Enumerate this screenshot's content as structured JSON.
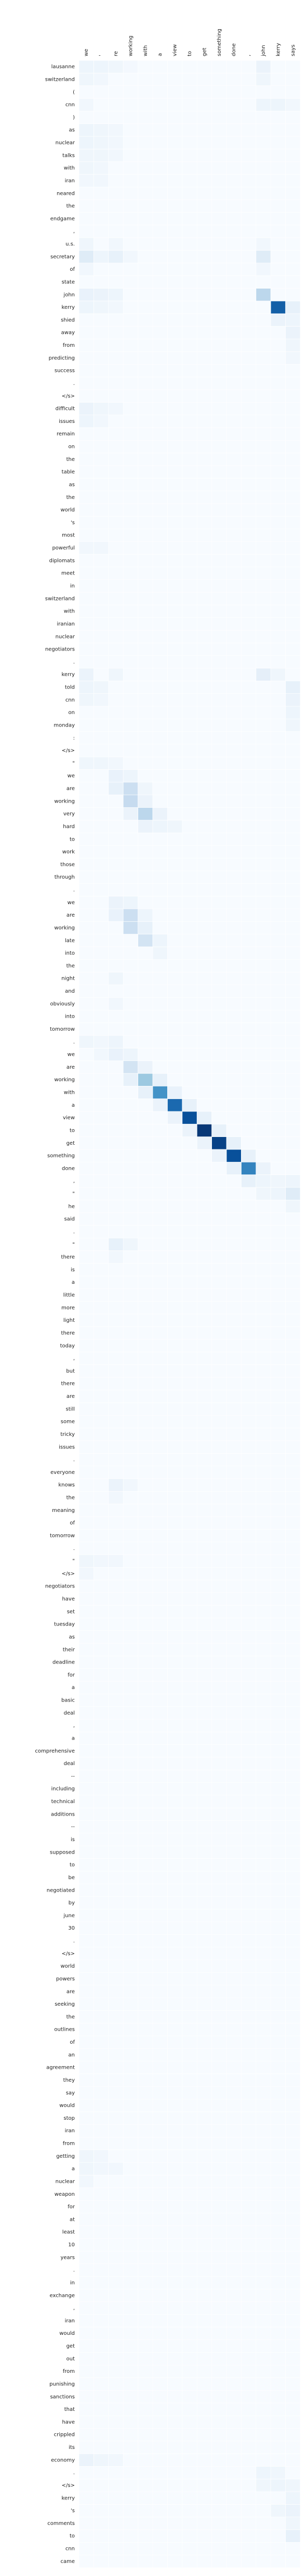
{
  "chart_data": {
    "type": "heatmap",
    "title": "",
    "xlabel": "",
    "ylabel": "",
    "grid": true,
    "colormap": [
      "#f7fbff",
      "#deebf7",
      "#c6dbef",
      "#9ecae1",
      "#6baed6",
      "#4292c6",
      "#2171b5",
      "#08519c",
      "#08306b"
    ],
    "x_labels": [
      "we",
      "'",
      "re",
      "working",
      "with",
      "a",
      "view",
      "to",
      "get",
      "something",
      "done",
      ",",
      "john",
      "kerry",
      "says"
    ],
    "y_labels": [
      "lausanne",
      "switzerland",
      "(",
      "cnn",
      ")",
      "as",
      "nuclear",
      "talks",
      "with",
      "iran",
      "neared",
      "the",
      "endgame",
      ",",
      "u.s.",
      "secretary",
      "of",
      "state",
      "john",
      "kerry",
      "shied",
      "away",
      "from",
      "predicting",
      "success",
      ".",
      "</s>",
      "difficult",
      "issues",
      "remain",
      "on",
      "the",
      "table",
      "as",
      "the",
      "world",
      "'s",
      "most",
      "powerful",
      "diplomats",
      "meet",
      "in",
      "switzerland",
      "with",
      "iranian",
      "nuclear",
      "negotiators",
      ".",
      "kerry",
      "told",
      "cnn",
      "on",
      "monday",
      ":",
      "</s>",
      "\"",
      "we",
      "are",
      "working",
      "very",
      "hard",
      "to",
      "work",
      "those",
      "through",
      ".",
      "we",
      "are",
      "working",
      "late",
      "into",
      "the",
      "night",
      "and",
      "obviously",
      "into",
      "tomorrow",
      ".",
      "we",
      "are",
      "working",
      "with",
      "a",
      "view",
      "to",
      "get",
      "something",
      "done",
      ",",
      "\"",
      "he",
      "said",
      ".",
      "\"",
      "there",
      "is",
      "a",
      "little",
      "more",
      "light",
      "there",
      "today",
      ",",
      "but",
      "there",
      "are",
      "still",
      "some",
      "tricky",
      "issues",
      ".",
      "everyone",
      "knows",
      "the",
      "meaning",
      "of",
      "tomorrow",
      ".",
      "\"",
      "</s>",
      "negotiators",
      "have",
      "set",
      "tuesday",
      "as",
      "their",
      "deadline",
      "for",
      "a",
      "basic",
      "deal",
      ",",
      "a",
      "comprehensive",
      "deal",
      "--",
      "including",
      "technical",
      "additions",
      "--",
      "is",
      "supposed",
      "to",
      "be",
      "negotiated",
      "by",
      "june",
      "30",
      ".",
      "</s>",
      "world",
      "powers",
      "are",
      "seeking",
      "the",
      "outlines",
      "of",
      "an",
      "agreement",
      "they",
      "say",
      "would",
      "stop",
      "iran",
      "from",
      "getting",
      "a",
      "nuclear",
      "weapon",
      "for",
      "at",
      "least",
      "10",
      "years",
      ".",
      "in",
      "exchange",
      ",",
      "iran",
      "would",
      "get",
      "out",
      "from",
      "punishing",
      "sanctions",
      "that",
      "have",
      "crippled",
      "its",
      "economy",
      ".",
      "</s>",
      "kerry",
      "'s",
      "comments",
      "to",
      "cnn",
      "came"
    ],
    "cells": [
      [
        0,
        0,
        0.05
      ],
      [
        0,
        1,
        0.05
      ],
      [
        0,
        2,
        0.04
      ],
      [
        0,
        3,
        0.02
      ],
      [
        0,
        12,
        0.06
      ],
      [
        1,
        0,
        0.04
      ],
      [
        1,
        1,
        0.03
      ],
      [
        1,
        12,
        0.04
      ],
      [
        3,
        0,
        0.03
      ],
      [
        3,
        12,
        0.05
      ],
      [
        3,
        13,
        0.05
      ],
      [
        3,
        14,
        0.03
      ],
      [
        5,
        0,
        0.05
      ],
      [
        5,
        1,
        0.04
      ],
      [
        5,
        2,
        0.03
      ],
      [
        6,
        0,
        0.05
      ],
      [
        6,
        1,
        0.04
      ],
      [
        6,
        2,
        0.03
      ],
      [
        7,
        0,
        0.04
      ],
      [
        7,
        1,
        0.04
      ],
      [
        7,
        2,
        0.03
      ],
      [
        8,
        0,
        0.04
      ],
      [
        8,
        1,
        0.03
      ],
      [
        9,
        0,
        0.03
      ],
      [
        9,
        1,
        0.03
      ],
      [
        14,
        0,
        0.04
      ],
      [
        14,
        2,
        0.03
      ],
      [
        14,
        12,
        0.03
      ],
      [
        15,
        0,
        0.12
      ],
      [
        15,
        1,
        0.05
      ],
      [
        15,
        2,
        0.08
      ],
      [
        15,
        3,
        0.03
      ],
      [
        15,
        12,
        0.12
      ],
      [
        16,
        0,
        0.03
      ],
      [
        16,
        12,
        0.03
      ],
      [
        18,
        0,
        0.07
      ],
      [
        18,
        1,
        0.06
      ],
      [
        18,
        2,
        0.05
      ],
      [
        18,
        12,
        0.28
      ],
      [
        19,
        0,
        0.05
      ],
      [
        19,
        1,
        0.04
      ],
      [
        19,
        2,
        0.03
      ],
      [
        19,
        13,
        0.82
      ],
      [
        19,
        14,
        0.08
      ],
      [
        20,
        13,
        0.06
      ],
      [
        20,
        14,
        0.05
      ],
      [
        21,
        14,
        0.06
      ],
      [
        22,
        14,
        0.04
      ],
      [
        23,
        14,
        0.03
      ],
      [
        27,
        0,
        0.06
      ],
      [
        27,
        1,
        0.04
      ],
      [
        27,
        2,
        0.03
      ],
      [
        28,
        0,
        0.05
      ],
      [
        28,
        1,
        0.03
      ],
      [
        38,
        0,
        0.03
      ],
      [
        38,
        1,
        0.03
      ],
      [
        48,
        0,
        0.06
      ],
      [
        48,
        2,
        0.04
      ],
      [
        48,
        12,
        0.09
      ],
      [
        48,
        13,
        0.04
      ],
      [
        49,
        0,
        0.05
      ],
      [
        49,
        1,
        0.04
      ],
      [
        49,
        14,
        0.08
      ],
      [
        50,
        0,
        0.04
      ],
      [
        50,
        1,
        0.03
      ],
      [
        50,
        14,
        0.06
      ],
      [
        51,
        14,
        0.05
      ],
      [
        52,
        14,
        0.04
      ],
      [
        55,
        0,
        0.04
      ],
      [
        55,
        1,
        0.04
      ],
      [
        55,
        2,
        0.03
      ],
      [
        56,
        2,
        0.07
      ],
      [
        56,
        3,
        0.05
      ],
      [
        57,
        2,
        0.08
      ],
      [
        57,
        3,
        0.22
      ],
      [
        57,
        4,
        0.04
      ],
      [
        58,
        3,
        0.25
      ],
      [
        58,
        4,
        0.06
      ],
      [
        59,
        3,
        0.06
      ],
      [
        59,
        4,
        0.28
      ],
      [
        59,
        5,
        0.06
      ],
      [
        60,
        4,
        0.06
      ],
      [
        60,
        5,
        0.05
      ],
      [
        60,
        6,
        0.04
      ],
      [
        66,
        2,
        0.06
      ],
      [
        66,
        3,
        0.05
      ],
      [
        67,
        2,
        0.07
      ],
      [
        67,
        3,
        0.22
      ],
      [
        67,
        4,
        0.05
      ],
      [
        68,
        3,
        0.22
      ],
      [
        68,
        4,
        0.08
      ],
      [
        69,
        4,
        0.18
      ],
      [
        69,
        5,
        0.05
      ],
      [
        70,
        5,
        0.04
      ],
      [
        72,
        2,
        0.04
      ],
      [
        74,
        2,
        0.03
      ],
      [
        77,
        0,
        0.04
      ],
      [
        77,
        1,
        0.03
      ],
      [
        77,
        2,
        0.05
      ],
      [
        78,
        1,
        0.03
      ],
      [
        78,
        2,
        0.07
      ],
      [
        78,
        3,
        0.05
      ],
      [
        79,
        3,
        0.18
      ],
      [
        79,
        4,
        0.06
      ],
      [
        80,
        3,
        0.08
      ],
      [
        80,
        4,
        0.38
      ],
      [
        80,
        5,
        0.08
      ],
      [
        81,
        4,
        0.08
      ],
      [
        81,
        5,
        0.62
      ],
      [
        81,
        6,
        0.07
      ],
      [
        82,
        5,
        0.06
      ],
      [
        82,
        6,
        0.78
      ],
      [
        82,
        7,
        0.08
      ],
      [
        83,
        6,
        0.06
      ],
      [
        83,
        7,
        0.88
      ],
      [
        83,
        8,
        0.08
      ],
      [
        84,
        7,
        0.06
      ],
      [
        84,
        8,
        0.97
      ],
      [
        84,
        9,
        0.08
      ],
      [
        85,
        8,
        0.06
      ],
      [
        85,
        9,
        0.93
      ],
      [
        85,
        10,
        0.08
      ],
      [
        86,
        9,
        0.06
      ],
      [
        86,
        10,
        0.88
      ],
      [
        86,
        11,
        0.08
      ],
      [
        87,
        10,
        0.08
      ],
      [
        87,
        11,
        0.68
      ],
      [
        87,
        12,
        0.06
      ],
      [
        88,
        11,
        0.08
      ],
      [
        88,
        12,
        0.05
      ],
      [
        88,
        13,
        0.04
      ],
      [
        88,
        14,
        0.05
      ],
      [
        89,
        12,
        0.04
      ],
      [
        89,
        13,
        0.05
      ],
      [
        89,
        14,
        0.12
      ],
      [
        90,
        14,
        0.04
      ],
      [
        93,
        2,
        0.08
      ],
      [
        93,
        3,
        0.04
      ],
      [
        94,
        2,
        0.03
      ],
      [
        112,
        2,
        0.06
      ],
      [
        112,
        3,
        0.03
      ],
      [
        113,
        2,
        0.03
      ],
      [
        118,
        0,
        0.04
      ],
      [
        118,
        1,
        0.03
      ],
      [
        118,
        2,
        0.03
      ],
      [
        119,
        0,
        0.03
      ],
      [
        165,
        0,
        0.04
      ],
      [
        165,
        1,
        0.03
      ],
      [
        166,
        0,
        0.04
      ],
      [
        166,
        1,
        0.03
      ],
      [
        166,
        2,
        0.03
      ],
      [
        167,
        0,
        0.03
      ],
      [
        189,
        0,
        0.06
      ],
      [
        189,
        1,
        0.04
      ],
      [
        189,
        2,
        0.03
      ],
      [
        190,
        12,
        0.05
      ],
      [
        190,
        13,
        0.04
      ],
      [
        191,
        12,
        0.04
      ],
      [
        191,
        13,
        0.05
      ],
      [
        191,
        14,
        0.04
      ],
      [
        192,
        14,
        0.05
      ],
      [
        193,
        13,
        0.04
      ],
      [
        193,
        14,
        0.06
      ],
      [
        194,
        14,
        0.04
      ],
      [
        195,
        14,
        0.08
      ]
    ]
  }
}
